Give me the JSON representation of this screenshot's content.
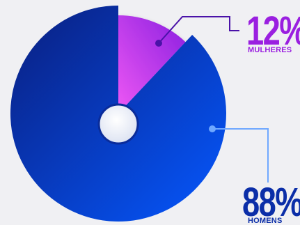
{
  "chart_data": {
    "type": "pie",
    "title": "",
    "slices": [
      {
        "label": "MULHERES",
        "value": 12,
        "display": "12%",
        "color": "#a021e0"
      },
      {
        "label": "HOMENS",
        "value": 88,
        "display": "88%",
        "color": "#0b2ea8"
      }
    ],
    "legend": "none",
    "exploded_slice": "MULHERES"
  },
  "colors": {
    "background": "#f0f0f3",
    "women_gradient_start": "#ee58f4",
    "women_gradient_end": "#8a1fe0",
    "men_gradient_start": "#0a1e7e",
    "men_gradient_end": "#0558ff",
    "women_text": "#9a1fe0",
    "men_text": "#0b2ea8",
    "center_hole": "#ffffff"
  }
}
